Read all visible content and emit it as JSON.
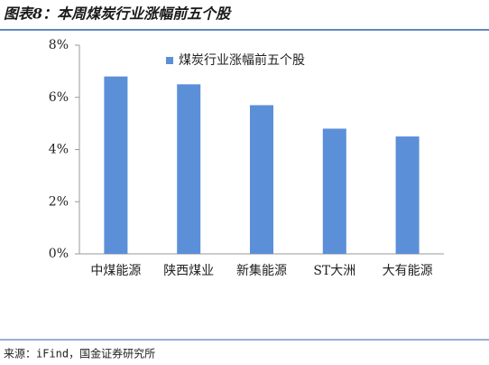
{
  "chart_data": {
    "type": "bar",
    "title": "图表8：本周煤炭行业涨幅前五个股",
    "source": "来源：iFind，国金证券研究所",
    "categories": [
      "中煤能源",
      "陕西煤业",
      "新集能源",
      "ST大洲",
      "大有能源"
    ],
    "series": [
      {
        "name": "煤炭行业涨幅前五个股",
        "color": "#5b8fd8",
        "values": [
          6.8,
          6.5,
          5.7,
          4.8,
          4.5
        ]
      }
    ],
    "ylim": [
      0,
      8
    ],
    "yticks": [
      {
        "value": 0,
        "label": "0%"
      },
      {
        "value": 2,
        "label": "2%"
      },
      {
        "value": 4,
        "label": "4%"
      },
      {
        "value": 6,
        "label": "6%"
      },
      {
        "value": 8,
        "label": "8%"
      }
    ],
    "grid": false,
    "legend": "top"
  }
}
